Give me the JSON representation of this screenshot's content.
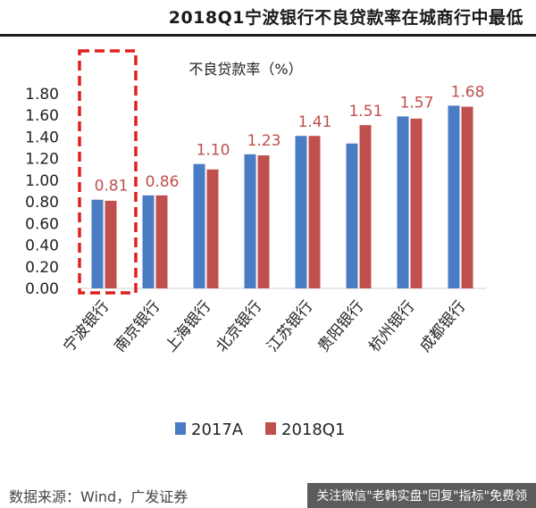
{
  "header": {
    "title": "2018Q1宁波银行不良贷款率在城商行中最低"
  },
  "chart_data": {
    "type": "bar",
    "title": "不良贷款率（%）",
    "categories": [
      "宁波银行",
      "南京银行",
      "上海银行",
      "北京银行",
      "江苏银行",
      "贵阳银行",
      "杭州银行",
      "成都银行"
    ],
    "series": [
      {
        "name": "2017A",
        "color": "#4a7cc4",
        "values": [
          0.82,
          0.86,
          1.15,
          1.24,
          1.41,
          1.34,
          1.59,
          1.69
        ]
      },
      {
        "name": "2018Q1",
        "color": "#c0504d",
        "values": [
          0.81,
          0.86,
          1.1,
          1.23,
          1.41,
          1.51,
          1.57,
          1.68
        ]
      }
    ],
    "data_labels": [
      "0.81",
      "0.86",
      "1.10",
      "1.23",
      "1.41",
      "1.51",
      "1.57",
      "1.68"
    ],
    "y_ticks": [
      "0.00",
      "0.20",
      "0.40",
      "0.60",
      "0.80",
      "1.00",
      "1.20",
      "1.40",
      "1.60",
      "1.80"
    ],
    "ylim": [
      0,
      1.8
    ],
    "grid": false,
    "legend_position": "bottom-center",
    "highlight_category": "宁波银行",
    "highlight_color": "#e02020",
    "label_color": "#c0504d"
  },
  "footer": {
    "source": "数据来源：Wind，广发证券",
    "watermark": "关注微信\"老韩实盘\"回复\"指标\"免费领"
  }
}
